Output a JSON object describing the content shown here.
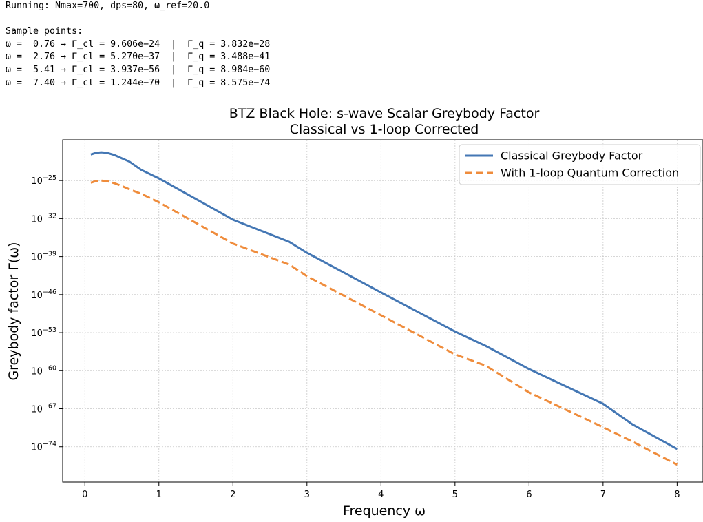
{
  "console": {
    "run_line": "Running: Nmax=700, dps=80, ω_ref=20.0",
    "header": "Sample points:",
    "samples": [
      "ω =  0.76 → Γ_cl = 9.606e−24  |  Γ_q = 3.832e−28",
      "ω =  2.76 → Γ_cl = 5.270e−37  |  Γ_q = 3.488e−41",
      "ω =  5.41 → Γ_cl = 3.937e−56  |  Γ_q = 8.984e−60",
      "ω =  7.40 → Γ_cl = 1.244e−70  |  Γ_q = 8.575e−74"
    ]
  },
  "chart_data": {
    "type": "line",
    "title": "BTZ Black Hole: s-wave Scalar Greybody Factor",
    "subtitle": "Classical vs 1-loop Corrected",
    "xlabel": "Frequency ω",
    "ylabel": "Greybody factor Γ(ω)",
    "yscale": "log",
    "xlim": [
      -0.3,
      8.35
    ],
    "ylim_log10": [
      -80.5,
      -17.5
    ],
    "x_ticks": [
      0,
      1,
      2,
      3,
      4,
      5,
      6,
      7,
      8
    ],
    "y_ticks_log10": [
      -25,
      -32,
      -39,
      -46,
      -53,
      -60,
      -67,
      -74
    ],
    "grid": true,
    "legend_position": "top-right",
    "series": [
      {
        "name": "Classical Greybody Factor",
        "color": "#4477b4",
        "style": "solid",
        "x": [
          0.08,
          0.15,
          0.22,
          0.3,
          0.4,
          0.5,
          0.6,
          0.76,
          1.0,
          1.5,
          2.0,
          2.76,
          3.0,
          4.0,
          5.0,
          5.41,
          6.0,
          7.0,
          7.4,
          8.0
        ],
        "log10_y": [
          -20.2,
          -19.9,
          -19.8,
          -19.9,
          -20.3,
          -20.9,
          -21.5,
          -23.02,
          -24.6,
          -28.4,
          -32.2,
          -36.28,
          -38.3,
          -45.6,
          -52.8,
          -55.4,
          -59.7,
          -66.1,
          -69.91,
          -74.4
        ]
      },
      {
        "name": "With 1-loop Quantum Correction",
        "color": "#ef8c3c",
        "style": "dashed",
        "x": [
          0.08,
          0.15,
          0.22,
          0.3,
          0.4,
          0.5,
          0.6,
          0.76,
          1.0,
          1.5,
          2.0,
          2.76,
          3.0,
          4.0,
          5.0,
          5.41,
          6.0,
          7.0,
          7.4,
          8.0
        ],
        "log10_y": [
          -25.4,
          -25.1,
          -25.0,
          -25.1,
          -25.5,
          -26.0,
          -26.6,
          -27.42,
          -29.0,
          -32.8,
          -36.6,
          -40.46,
          -42.6,
          -49.8,
          -57.0,
          -59.05,
          -64.0,
          -70.4,
          -73.07,
          -77.3
        ]
      }
    ]
  }
}
